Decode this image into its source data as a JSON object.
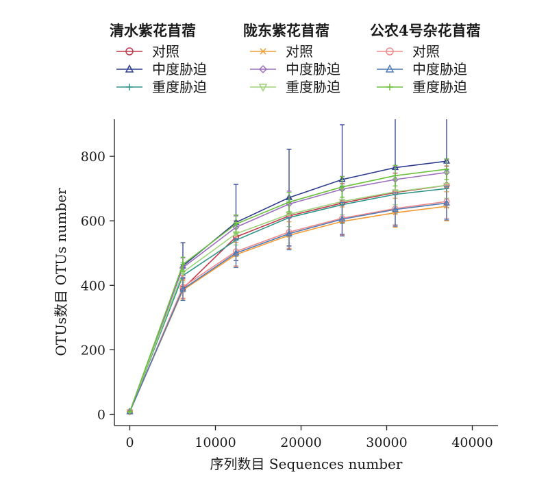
{
  "chart_data": {
    "type": "line",
    "xlabel": "序列数目 Sequences number",
    "ylabel": "OTUs数目 OTUs number",
    "x": [
      0,
      6200,
      12400,
      18600,
      24800,
      31000,
      37000
    ],
    "xlim": [
      -1800,
      43000
    ],
    "ylim": [
      -35,
      915
    ],
    "xticks": [
      0,
      10000,
      20000,
      30000,
      40000
    ],
    "yticks": [
      0,
      200,
      400,
      600,
      800
    ],
    "grid": false,
    "legend_position": "top",
    "legend_groups": [
      {
        "title": "清水紫花苜蓿",
        "items": [
          0,
          1,
          2
        ]
      },
      {
        "title": "陇东紫花苜蓿",
        "items": [
          3,
          4,
          5
        ]
      },
      {
        "title": "公农4号杂花苜蓿",
        "items": [
          6,
          7,
          8
        ]
      }
    ],
    "series": [
      {
        "group": "清水紫花苜蓿",
        "name": "对照",
        "color": "#c0394b",
        "marker": "circle",
        "values": [
          8,
          390,
          550,
          615,
          655,
          688,
          710
        ],
        "errors": [
          0,
          30,
          50,
          55,
          60,
          60,
          60
        ]
      },
      {
        "group": "清水紫花苜蓿",
        "name": "中度胁迫",
        "color": "#2e3d8f",
        "marker": "triangle-up",
        "values": [
          8,
          460,
          595,
          672,
          728,
          765,
          785
        ],
        "errors": [
          0,
          72,
          118,
          150,
          170,
          178,
          183
        ]
      },
      {
        "group": "清水紫花苜蓿",
        "name": "重度胁迫",
        "color": "#2e9488",
        "marker": "plus",
        "values": [
          8,
          430,
          540,
          610,
          650,
          682,
          700
        ],
        "errors": [
          0,
          40,
          50,
          55,
          58,
          58,
          58
        ]
      },
      {
        "group": "陇东紫花苜蓿",
        "name": "对照",
        "color": "#f39a32",
        "marker": "x",
        "values": [
          8,
          385,
          495,
          555,
          598,
          625,
          645
        ],
        "errors": [
          0,
          30,
          38,
          42,
          45,
          45,
          45
        ]
      },
      {
        "group": "陇东紫花苜蓿",
        "name": "中度胁迫",
        "color": "#9b6fbe",
        "marker": "diamond",
        "values": [
          8,
          455,
          580,
          652,
          698,
          728,
          750
        ],
        "errors": [
          0,
          30,
          35,
          40,
          40,
          40,
          40
        ]
      },
      {
        "group": "陇东紫花苜蓿",
        "name": "重度胁迫",
        "color": "#9ed27a",
        "marker": "triangle-down",
        "values": [
          8,
          440,
          560,
          620,
          660,
          690,
          710
        ],
        "errors": [
          0,
          30,
          35,
          38,
          40,
          40,
          40
        ]
      },
      {
        "group": "公农4号杂花苜蓿",
        "name": "对照",
        "color": "#f08a8a",
        "marker": "circle",
        "values": [
          8,
          395,
          505,
          565,
          608,
          638,
          660
        ],
        "errors": [
          0,
          35,
          45,
          50,
          52,
          52,
          52
        ]
      },
      {
        "group": "公农4号杂花苜蓿",
        "name": "中度胁迫",
        "color": "#4f7bb4",
        "marker": "triangle-up",
        "values": [
          8,
          388,
          500,
          560,
          605,
          635,
          655
        ],
        "errors": [
          0,
          35,
          45,
          50,
          52,
          52,
          52
        ]
      },
      {
        "group": "公农4号杂花苜蓿",
        "name": "重度胁迫",
        "color": "#6abf3c",
        "marker": "plus",
        "values": [
          8,
          465,
          590,
          658,
          705,
          740,
          760
        ],
        "errors": [
          0,
          22,
          28,
          30,
          32,
          32,
          32
        ]
      }
    ]
  }
}
